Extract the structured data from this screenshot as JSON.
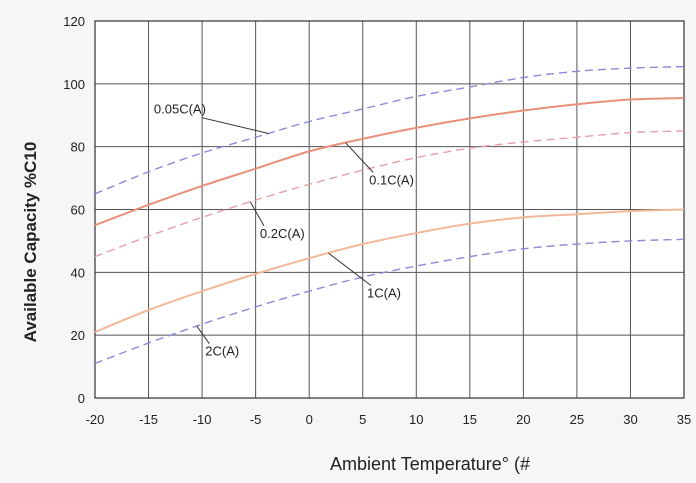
{
  "chart_data": {
    "type": "line",
    "xlabel": "Ambient Temperature° (#",
    "ylabel": "Available Capacity %C10",
    "xlim": [
      -20,
      35
    ],
    "ylim": [
      0,
      120
    ],
    "x_ticks": [
      -20,
      -15,
      -10,
      -5,
      0,
      5,
      10,
      15,
      20,
      25,
      30,
      35
    ],
    "y_ticks": [
      0,
      20,
      40,
      60,
      80,
      100,
      120
    ],
    "grid": true,
    "series": [
      {
        "name": "0.05C(A)",
        "style": "dashed",
        "color": "#8a8ad8",
        "x": [
          -20,
          -15,
          -10,
          -5,
          0,
          5,
          10,
          15,
          20,
          25,
          30,
          35
        ],
        "values": [
          65,
          72,
          78,
          83,
          88,
          92,
          96,
          99,
          102,
          104,
          105,
          105.5
        ]
      },
      {
        "name": "0.1C(A)",
        "style": "solid",
        "color": "#e8907a",
        "x": [
          -20,
          -15,
          -10,
          -5,
          0,
          5,
          10,
          15,
          20,
          25,
          30,
          35
        ],
        "values": [
          55,
          61.5,
          67.5,
          73,
          78.5,
          82.5,
          86,
          89,
          91.5,
          93.5,
          95,
          95.5
        ]
      },
      {
        "name": "0.2C(A)",
        "style": "dashed",
        "color": "#e4a0a8",
        "x": [
          -20,
          -15,
          -10,
          -5,
          0,
          5,
          10,
          15,
          20,
          25,
          30,
          35
        ],
        "values": [
          45,
          51.5,
          57.5,
          63,
          68,
          72.5,
          76.5,
          79.5,
          81.5,
          83,
          84.5,
          85
        ]
      },
      {
        "name": "1C(A)",
        "style": "solid",
        "color": "#f2b898",
        "x": [
          -20,
          -15,
          -10,
          -5,
          0,
          5,
          10,
          15,
          20,
          25,
          30,
          35
        ],
        "values": [
          21,
          28,
          34,
          39.5,
          44.5,
          49,
          52.5,
          55.5,
          57.5,
          58.5,
          59.5,
          60
        ]
      },
      {
        "name": "2C(A)",
        "style": "dashed",
        "color": "#8a8ad8",
        "x": [
          -20,
          -15,
          -10,
          -5,
          0,
          5,
          10,
          15,
          20,
          25,
          30,
          35
        ],
        "values": [
          11,
          17.5,
          23.5,
          29,
          34,
          38.5,
          42,
          45,
          47.5,
          49,
          50,
          50.5
        ]
      }
    ],
    "annotations": [
      {
        "text": "0.05C(A)",
        "series": "0.05C(A)",
        "at_x": -3.8,
        "label_x": -14.5,
        "label_y": 90.5
      },
      {
        "text": "0.1C(A)",
        "series": "0.1C(A)",
        "at_x": 3.4,
        "label_x": 5.6,
        "label_y": 68
      },
      {
        "text": "0.2C(A)",
        "series": "0.2C(A)",
        "at_x": -5.5,
        "label_x": -4.6,
        "label_y": 51
      },
      {
        "text": "1C(A)",
        "series": "1C(A)",
        "at_x": 1.8,
        "label_x": 5.4,
        "label_y": 32
      },
      {
        "text": "2C(A)",
        "series": "2C(A)",
        "at_x": -10.5,
        "label_x": -9.7,
        "label_y": 13.5
      }
    ]
  }
}
